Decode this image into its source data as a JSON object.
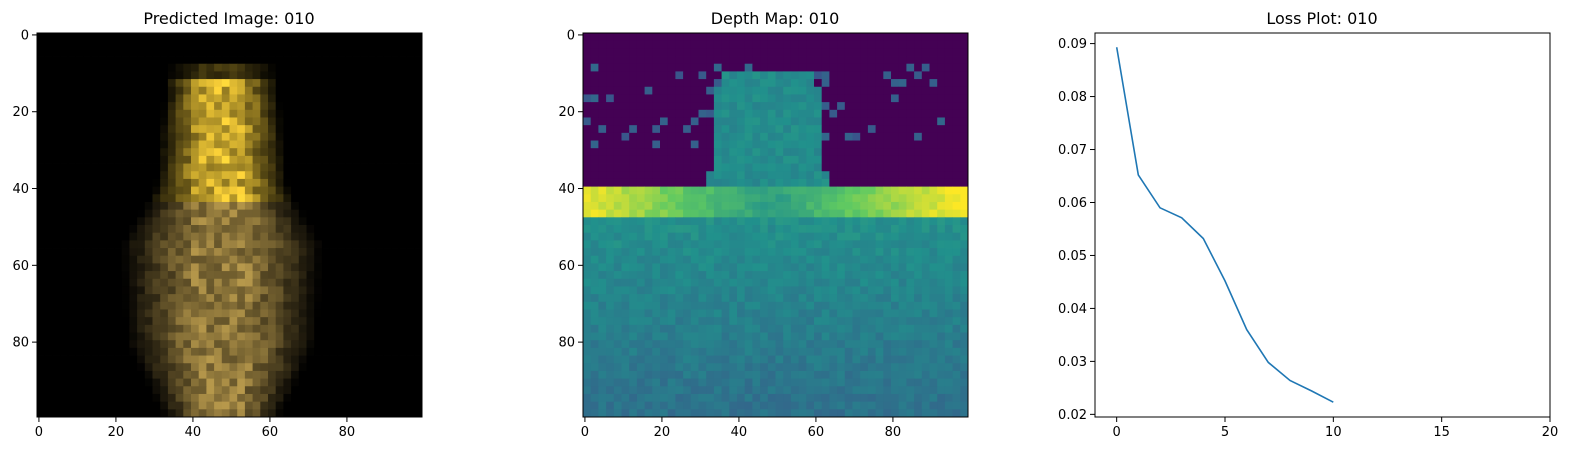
{
  "panels": [
    {
      "title": "Predicted Image: 010",
      "type": "image",
      "x_ticks": [
        "0",
        "20",
        "40",
        "60",
        "80"
      ],
      "y_ticks": [
        "0",
        "20",
        "40",
        "60",
        "80"
      ]
    },
    {
      "title": "Depth Map: 010",
      "type": "image",
      "colormap": "viridis",
      "x_ticks": [
        "0",
        "20",
        "40",
        "60",
        "80"
      ],
      "y_ticks": [
        "0",
        "20",
        "40",
        "60",
        "80"
      ]
    },
    {
      "title": "Loss Plot: 010",
      "type": "line",
      "x_ticks": [
        "0",
        "5",
        "10",
        "15",
        "20"
      ],
      "y_ticks": [
        "0.02",
        "0.03",
        "0.04",
        "0.05",
        "0.06",
        "0.07",
        "0.08",
        "0.09"
      ]
    }
  ],
  "chart_data": [
    {
      "type": "heatmap",
      "title": "Predicted Image: 010",
      "description_of_content": "",
      "xlim": [
        0,
        100
      ],
      "ylim": [
        100,
        0
      ],
      "x_ticks": [
        0,
        20,
        40,
        60,
        80
      ],
      "y_ticks": [
        0,
        20,
        40,
        60,
        80
      ]
    },
    {
      "type": "heatmap",
      "title": "Depth Map: 010",
      "colormap": "viridis",
      "xlim": [
        0,
        100
      ],
      "ylim": [
        100,
        0
      ],
      "x_ticks": [
        0,
        20,
        40,
        60,
        80
      ],
      "y_ticks": [
        0,
        20,
        40,
        60,
        80
      ]
    },
    {
      "type": "line",
      "title": "Loss Plot: 010",
      "x": [
        0,
        1,
        2,
        3,
        4,
        5,
        6,
        7,
        8,
        9,
        10
      ],
      "series": [
        {
          "values": [
            0.0893,
            0.0652,
            0.059,
            0.0571,
            0.0532,
            0.0452,
            0.036,
            0.0298,
            0.0264,
            0.0244,
            0.0223
          ]
        }
      ],
      "xlim": [
        -1,
        20
      ],
      "ylim": [
        0.0195,
        0.092
      ],
      "x_ticks": [
        0,
        5,
        10,
        15,
        20
      ],
      "y_ticks": [
        0.02,
        0.03,
        0.04,
        0.05,
        0.06,
        0.07,
        0.08,
        0.09
      ],
      "line_color": "#1f77b4"
    }
  ]
}
